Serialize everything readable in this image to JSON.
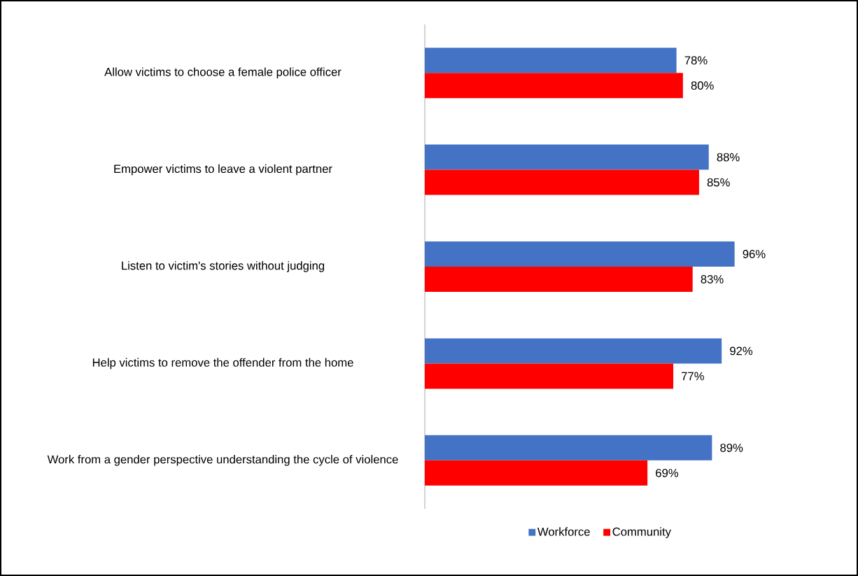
{
  "chart_data": {
    "type": "bar",
    "orientation": "horizontal",
    "categories": [
      "Allow victims to choose a female police officer",
      "Empower victims to leave a violent partner",
      "Listen to victim's stories without judging",
      "Help victims to remove the offender from the home",
      "Work from a gender perspective understanding the cycle of violence"
    ],
    "series": [
      {
        "name": "Workforce",
        "color": "#4472c4",
        "values": [
          78,
          88,
          96,
          92,
          89
        ],
        "value_labels": [
          "78%",
          "88%",
          "96%",
          "92%",
          "89%"
        ]
      },
      {
        "name": "Community",
        "color": "#ff0000",
        "values": [
          80,
          85,
          83,
          77,
          69
        ],
        "value_labels": [
          "80%",
          "85%",
          "83%",
          "77%",
          "69%"
        ]
      }
    ],
    "tick_labels": "y",
    "legend": "bottom",
    "grid": false
  }
}
